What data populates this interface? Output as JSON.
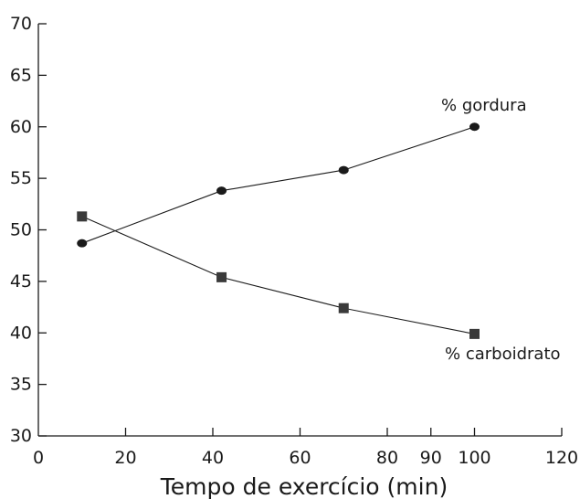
{
  "chart_data": {
    "type": "line",
    "title": "",
    "xlabel": "Tempo de exercício (min)",
    "ylabel": "",
    "xlim": [
      0,
      120
    ],
    "ylim": [
      30,
      70
    ],
    "xticks": [
      0,
      20,
      40,
      60,
      80,
      90,
      100,
      120
    ],
    "yticks": [
      30,
      35,
      40,
      45,
      50,
      55,
      60,
      65,
      70
    ],
    "grid": false,
    "legend": "none",
    "series": [
      {
        "name": "% gordura",
        "marker": "circle",
        "color": "#1a1a1a",
        "x": [
          10,
          42,
          70,
          100
        ],
        "y": [
          48.7,
          53.8,
          55.8,
          60.0
        ]
      },
      {
        "name": "% carboidrato",
        "marker": "square",
        "color": "#1a1a1a",
        "x": [
          10,
          42,
          70,
          100
        ],
        "y": [
          51.3,
          45.4,
          42.4,
          39.9
        ]
      }
    ]
  }
}
